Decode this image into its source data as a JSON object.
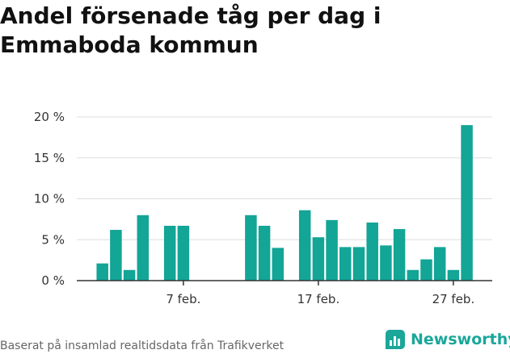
{
  "header": {
    "title": "Andel försenade tåg per dag i Emmaboda kommun"
  },
  "footer": {
    "source": "Baserat på insamlad realtidsdata från Trafikverket",
    "brand": "Newsworthy"
  },
  "colors": {
    "bar": "#13a596",
    "brand": "#1aa79a"
  },
  "chart_data": {
    "type": "bar",
    "title": "Andel försenade tåg per dag i Emmaboda kommun",
    "xlabel": "",
    "ylabel": "",
    "ylim": [
      0,
      20
    ],
    "yticks": [
      0,
      5,
      10,
      15,
      20
    ],
    "ytick_labels": [
      "0 %",
      "5 %",
      "10 %",
      "15 %",
      "20 %"
    ],
    "xtick_labels": [
      {
        "day": 7,
        "label": "7 feb."
      },
      {
        "day": 17,
        "label": "17 feb."
      },
      {
        "day": 27,
        "label": "27 feb."
      }
    ],
    "grid": true,
    "x_days": [
      1,
      2,
      3,
      4,
      5,
      6,
      7,
      8,
      9,
      10,
      11,
      12,
      13,
      14,
      15,
      16,
      17,
      18,
      19,
      20,
      21,
      22,
      23,
      24,
      25,
      26,
      27,
      28,
      29
    ],
    "values": [
      2.1,
      6.2,
      1.3,
      8.0,
      null,
      6.7,
      6.7,
      null,
      null,
      null,
      null,
      8.0,
      6.7,
      4.0,
      null,
      8.6,
      5.3,
      7.4,
      4.1,
      4.1,
      7.1,
      4.3,
      6.3,
      1.3,
      2.6,
      4.1,
      1.3,
      19.0,
      null
    ]
  }
}
